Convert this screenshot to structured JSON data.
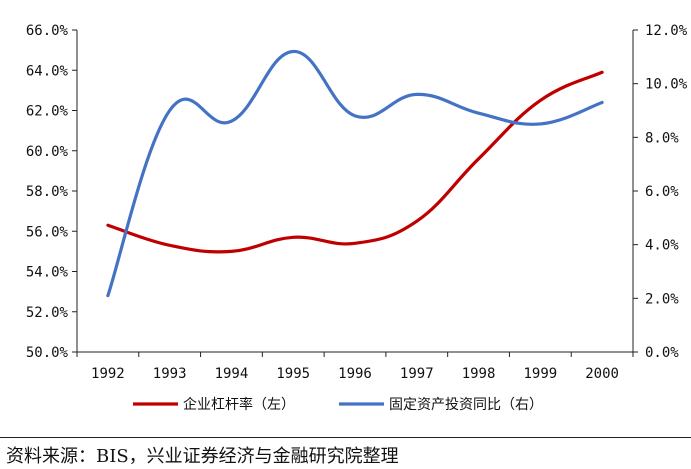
{
  "chart_data": {
    "type": "line",
    "x": [
      "1992",
      "1993",
      "1994",
      "1995",
      "1996",
      "1997",
      "1998",
      "1999",
      "2000"
    ],
    "series": [
      {
        "name": "企业杠杆率（左）",
        "axis": "left",
        "color": "#c00000",
        "values": [
          56.3,
          55.3,
          55.0,
          55.7,
          55.4,
          56.5,
          59.6,
          62.5,
          63.9
        ]
      },
      {
        "name": "固定资产投资同比（右）",
        "axis": "right",
        "color": "#4472c4",
        "values": [
          2.1,
          9.0,
          8.6,
          11.2,
          8.8,
          9.6,
          8.9,
          8.5,
          9.3
        ]
      }
    ],
    "y_left": {
      "min": 50,
      "max": 66,
      "ticks": [
        "50.0%",
        "52.0%",
        "54.0%",
        "56.0%",
        "58.0%",
        "60.0%",
        "62.0%",
        "64.0%",
        "66.0%"
      ]
    },
    "y_right": {
      "min": 0,
      "max": 12,
      "ticks": [
        "0.0%",
        "2.0%",
        "4.0%",
        "6.0%",
        "8.0%",
        "10.0%",
        "12.0%"
      ]
    },
    "grid": false,
    "legend_position": "bottom"
  },
  "source_note": "资料来源：BIS，兴业证券经济与金融研究院整理"
}
